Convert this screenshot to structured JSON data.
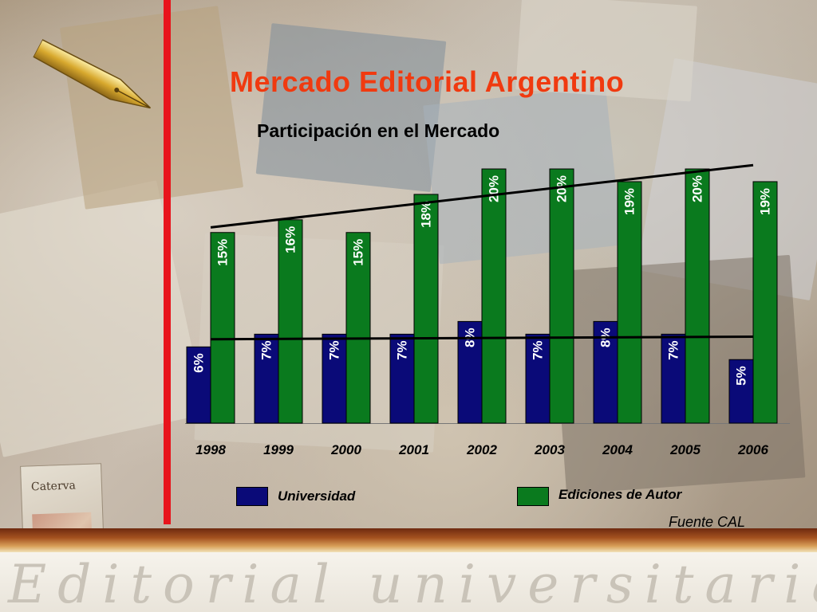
{
  "page": {
    "title": "Mercado Editorial Argentino",
    "footer_text": "Editorial universitaria",
    "book_title": "Caterva"
  },
  "colors": {
    "title": "#f03a10",
    "accent_line": "#e8141c",
    "universidad": "#0a0a78",
    "ediciones": "#0a7a1e"
  },
  "chart_data": {
    "type": "bar",
    "title": "Participación en el Mercado",
    "source": "Fuente CAL",
    "categories": [
      "1998",
      "1999",
      "2000",
      "2001",
      "2002",
      "2003",
      "2004",
      "2005",
      "2006"
    ],
    "series": [
      {
        "name": "Universidad",
        "values": [
          6,
          7,
          7,
          7,
          8,
          7,
          8,
          7,
          5
        ],
        "labels": [
          "6%",
          "7%",
          "7%",
          "7%",
          "8%",
          "7%",
          "8%",
          "7%",
          "5%"
        ],
        "color": "#0a0a78"
      },
      {
        "name": "Ediciones de Autor",
        "values": [
          15,
          16,
          15,
          18,
          20,
          20,
          19,
          20,
          19
        ],
        "labels": [
          "15%",
          "16%",
          "15%",
          "18%",
          "20%",
          "20%",
          "19%",
          "20%",
          "19%"
        ],
        "color": "#0a7a1e"
      }
    ],
    "ylim": [
      0,
      20
    ],
    "grid": false,
    "legend": "bottom",
    "trendlines": [
      {
        "series": "Ediciones de Autor",
        "from": [
          1998,
          15.4
        ],
        "to": [
          2006,
          20.3
        ]
      },
      {
        "series": "Universidad",
        "from": [
          1998,
          6.6
        ],
        "to": [
          2006,
          6.8
        ]
      }
    ]
  }
}
